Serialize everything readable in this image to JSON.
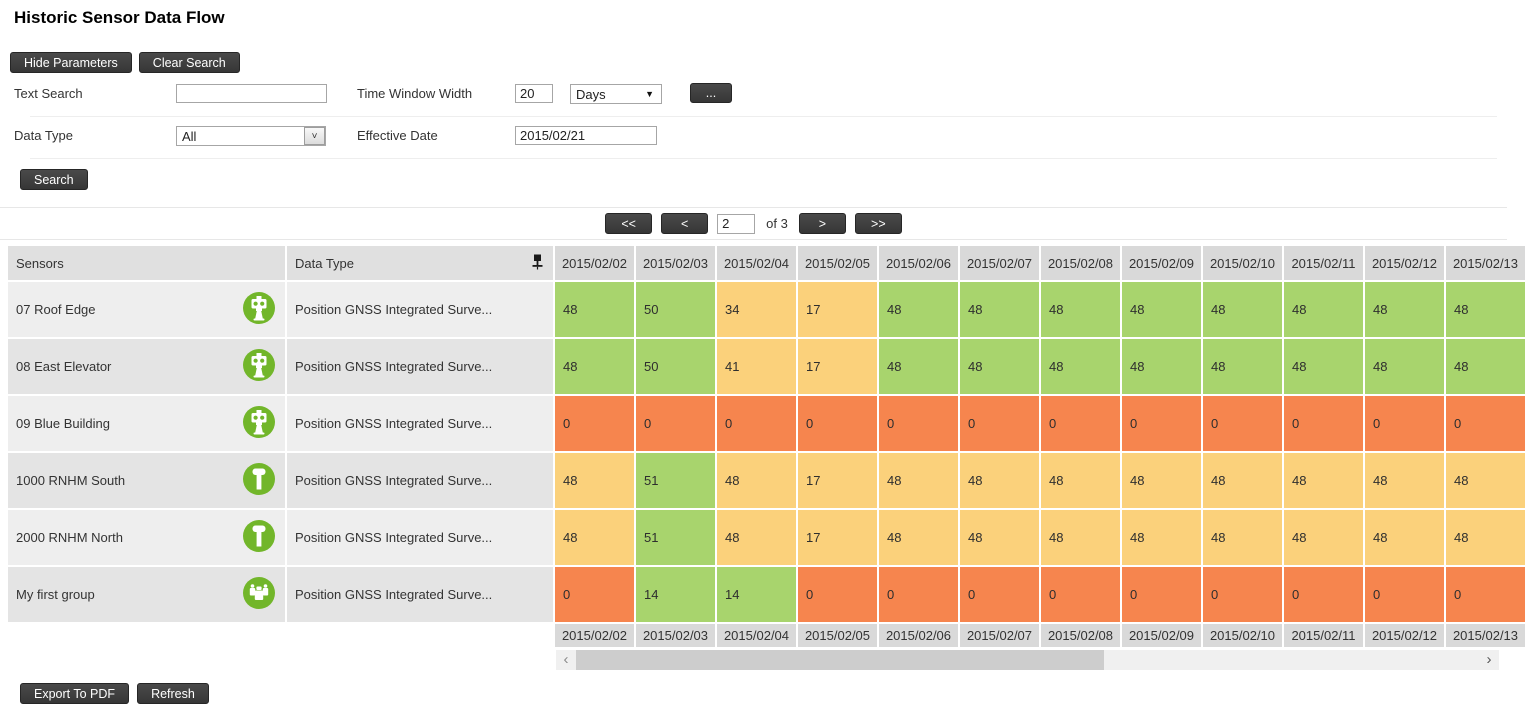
{
  "page": {
    "title": "Historic Sensor Data Flow"
  },
  "toolbar": {
    "hide_parameters_label": "Hide Parameters",
    "clear_search_label": "Clear Search"
  },
  "filters": {
    "text_search_label": "Text Search",
    "text_search_value": "",
    "time_window_width_label": "Time Window Width",
    "time_window_width_value": "20",
    "time_window_unit_value": "Days",
    "more_button_label": "...",
    "data_type_label": "Data Type",
    "data_type_value": "All",
    "effective_date_label": "Effective Date",
    "effective_date_value": "2015/02/21",
    "search_button_label": "Search"
  },
  "pagination": {
    "first_label": "<<",
    "prev_label": "<",
    "page_value": "2",
    "of_label": "of 3",
    "next_label": ">",
    "last_label": ">>"
  },
  "table": {
    "sensors_header": "Sensors",
    "data_type_header": "Data Type",
    "pin_icon_name": "push-pin-icon",
    "dates": [
      "2015/02/02",
      "2015/02/03",
      "2015/02/04",
      "2015/02/05",
      "2015/02/06",
      "2015/02/07",
      "2015/02/08",
      "2015/02/09",
      "2015/02/10",
      "2015/02/11",
      "2015/02/12",
      "2015/02/13"
    ],
    "rows": [
      {
        "name": "07 Roof Edge",
        "icon": "total-station",
        "data_type": "Position GNSS Integrated Surve...",
        "values": [
          48,
          50,
          34,
          17,
          48,
          48,
          48,
          48,
          48,
          48,
          48,
          48
        ],
        "statuses": [
          "green",
          "green",
          "yellow",
          "yellow",
          "green",
          "green",
          "green",
          "green",
          "green",
          "green",
          "green",
          "green"
        ]
      },
      {
        "name": "08 East Elevator",
        "icon": "total-station",
        "data_type": "Position GNSS Integrated Surve...",
        "values": [
          48,
          50,
          41,
          17,
          48,
          48,
          48,
          48,
          48,
          48,
          48,
          48
        ],
        "statuses": [
          "green",
          "green",
          "yellow",
          "yellow",
          "green",
          "green",
          "green",
          "green",
          "green",
          "green",
          "green",
          "green"
        ]
      },
      {
        "name": "09 Blue Building",
        "icon": "total-station",
        "data_type": "Position GNSS Integrated Surve...",
        "values": [
          0,
          0,
          0,
          0,
          0,
          0,
          0,
          0,
          0,
          0,
          0,
          0
        ],
        "statuses": [
          "orange",
          "orange",
          "orange",
          "orange",
          "orange",
          "orange",
          "orange",
          "orange",
          "orange",
          "orange",
          "orange",
          "orange"
        ]
      },
      {
        "name": "1000 RNHM South",
        "icon": "prism",
        "data_type": "Position GNSS Integrated Surve...",
        "values": [
          48,
          51,
          48,
          17,
          48,
          48,
          48,
          48,
          48,
          48,
          48,
          48
        ],
        "statuses": [
          "yellow",
          "green",
          "yellow",
          "yellow",
          "yellow",
          "yellow",
          "yellow",
          "yellow",
          "yellow",
          "yellow",
          "yellow",
          "yellow"
        ]
      },
      {
        "name": "2000 RNHM North",
        "icon": "prism",
        "data_type": "Position GNSS Integrated Surve...",
        "values": [
          48,
          51,
          48,
          17,
          48,
          48,
          48,
          48,
          48,
          48,
          48,
          48
        ],
        "statuses": [
          "yellow",
          "green",
          "yellow",
          "yellow",
          "yellow",
          "yellow",
          "yellow",
          "yellow",
          "yellow",
          "yellow",
          "yellow",
          "yellow"
        ]
      },
      {
        "name": "My first group",
        "icon": "sensor-group",
        "data_type": "Position GNSS Integrated Surve...",
        "values": [
          0,
          14,
          14,
          0,
          0,
          0,
          0,
          0,
          0,
          0,
          0,
          0
        ],
        "statuses": [
          "orange",
          "green",
          "green",
          "orange",
          "orange",
          "orange",
          "orange",
          "orange",
          "orange",
          "orange",
          "orange",
          "orange"
        ]
      }
    ]
  },
  "scrollbar": {
    "left_arrow": "‹",
    "right_arrow": "›"
  },
  "footer": {
    "export_pdf_label": "Export To PDF",
    "refresh_label": "Refresh"
  },
  "colors": {
    "green": "#a8d46d",
    "yellow": "#fbd17b",
    "orange": "#f6854e",
    "icon_green": "#72b62a"
  }
}
